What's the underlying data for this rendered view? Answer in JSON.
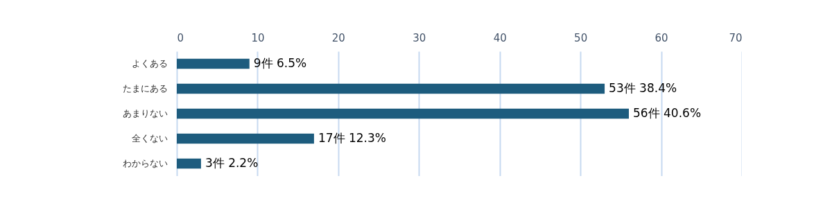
{
  "chart_data": {
    "type": "bar",
    "orientation": "horizontal",
    "categories": [
      "よくある",
      "たまにある",
      "あまりない",
      "全くない",
      "わからない"
    ],
    "values": [
      9,
      53,
      56,
      17,
      3
    ],
    "value_labels": [
      "9件  6.5%",
      "53件  38.4%",
      "56件  40.6%",
      "17件  12.3%",
      "3件  2.2%"
    ],
    "color": "#1d5c7e",
    "xlim": [
      0,
      70
    ],
    "xticks": [
      0,
      10,
      20,
      30,
      40,
      50,
      60,
      70
    ],
    "grid": "x"
  }
}
